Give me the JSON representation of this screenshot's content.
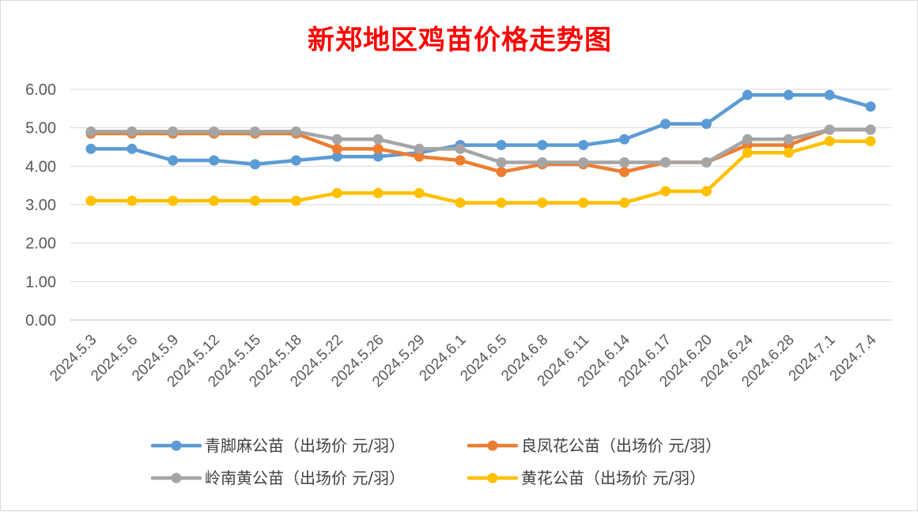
{
  "chart_data": {
    "type": "line",
    "title": "新郑地区鸡苗价格走势图",
    "xlabel": "",
    "ylabel": "",
    "ylim": [
      0,
      6
    ],
    "yticks": [
      "0.00",
      "1.00",
      "2.00",
      "3.00",
      "4.00",
      "5.00",
      "6.00"
    ],
    "grid": true,
    "legend_position": "bottom",
    "categories": [
      "2024.5.3",
      "2024.5.6",
      "2024.5.9",
      "2024.5.12",
      "2024.5.15",
      "2024.5.18",
      "2024.5.22",
      "2024.5.26",
      "2024.5.29",
      "2024.6.1",
      "2024.6.5",
      "2024.6.8",
      "2024.6.11",
      "2024.6.14",
      "2024.6.17",
      "2024.6.20",
      "2024.6.24",
      "2024.6.28",
      "2024.7.1",
      "2024.7.4"
    ],
    "series": [
      {
        "name": "青脚麻公苗（出场价 元/羽）",
        "color": "#5b9bd5",
        "values": [
          4.45,
          4.45,
          4.15,
          4.15,
          4.05,
          4.15,
          4.25,
          4.25,
          4.35,
          4.55,
          4.55,
          4.55,
          4.55,
          4.7,
          5.1,
          5.1,
          5.85,
          5.85,
          5.85,
          5.55
        ]
      },
      {
        "name": "良凤花公苗（出场价 元/羽）",
        "color": "#ed7d31",
        "values": [
          4.85,
          4.85,
          4.85,
          4.85,
          4.85,
          4.85,
          4.45,
          4.45,
          4.25,
          4.15,
          3.85,
          4.05,
          4.05,
          3.85,
          4.1,
          4.1,
          4.55,
          4.55,
          4.95,
          4.95
        ]
      },
      {
        "name": "岭南黄公苗（出场价 元/羽）",
        "color": "#a5a5a5",
        "values": [
          4.9,
          4.9,
          4.9,
          4.9,
          4.9,
          4.9,
          4.7,
          4.7,
          4.45,
          4.45,
          4.1,
          4.1,
          4.1,
          4.1,
          4.1,
          4.1,
          4.7,
          4.7,
          4.95,
          4.95
        ]
      },
      {
        "name": "黄花公苗（出场价 元/羽）",
        "color": "#ffc000",
        "values": [
          3.1,
          3.1,
          3.1,
          3.1,
          3.1,
          3.1,
          3.3,
          3.3,
          3.3,
          3.05,
          3.05,
          3.05,
          3.05,
          3.05,
          3.35,
          3.35,
          4.35,
          4.35,
          4.65,
          4.65
        ]
      }
    ]
  }
}
